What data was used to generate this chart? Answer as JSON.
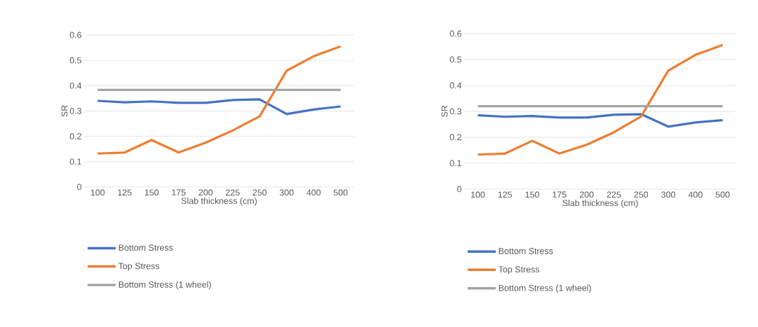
{
  "chart_data": [
    {
      "type": "line",
      "xlabel": "Slab thickness (cm)",
      "ylabel": "SR",
      "categories": [
        "100",
        "125",
        "150",
        "175",
        "200",
        "225",
        "250",
        "300",
        "400",
        "500"
      ],
      "series": [
        {
          "name": "Bottom Stress",
          "color": "#4472c4",
          "values": [
            0.34,
            0.334,
            0.338,
            0.332,
            0.332,
            0.343,
            0.346,
            0.288,
            0.306,
            0.318
          ]
        },
        {
          "name": "Top Stress",
          "color": "#ed7d31",
          "values": [
            0.132,
            0.136,
            0.185,
            0.136,
            0.175,
            0.223,
            0.279,
            0.459,
            0.516,
            0.555
          ]
        },
        {
          "name": "Bottom Stress (1 wheel)",
          "color": "#a5a5a5",
          "values": [
            0.383,
            0.383,
            0.383,
            0.383,
            0.383,
            0.383,
            0.383,
            0.383,
            0.383,
            0.383
          ]
        }
      ],
      "ylim": [
        0,
        0.6
      ],
      "yticks": [
        0,
        0.1,
        0.2,
        0.3,
        0.4,
        0.5,
        0.6
      ],
      "grid": "y",
      "legend": "bottom",
      "marker": "none",
      "line_style": "solid"
    },
    {
      "type": "line",
      "xlabel": "Slab thickness (cm)",
      "ylabel": "SR",
      "categories": [
        "100",
        "125",
        "150",
        "175",
        "200",
        "225",
        "250",
        "300",
        "400",
        "500"
      ],
      "series": [
        {
          "name": "Bottom Stress",
          "color": "#4472c4",
          "values": [
            0.285,
            0.279,
            0.282,
            0.276,
            0.276,
            0.287,
            0.289,
            0.241,
            0.257,
            0.266
          ]
        },
        {
          "name": "Top Stress",
          "color": "#ed7d31",
          "values": [
            0.133,
            0.137,
            0.186,
            0.137,
            0.171,
            0.219,
            0.28,
            0.457,
            0.518,
            0.556
          ]
        },
        {
          "name": "Bottom Stress (1 wheel)",
          "color": "#a5a5a5",
          "values": [
            0.32,
            0.32,
            0.32,
            0.32,
            0.32,
            0.32,
            0.32,
            0.32,
            0.32,
            0.32
          ]
        }
      ],
      "ylim": [
        0,
        0.6
      ],
      "yticks": [
        0,
        0.1,
        0.2,
        0.3,
        0.4,
        0.5,
        0.6
      ],
      "grid": "y",
      "legend": "bottom",
      "marker": "none",
      "line_style": "solid"
    }
  ]
}
